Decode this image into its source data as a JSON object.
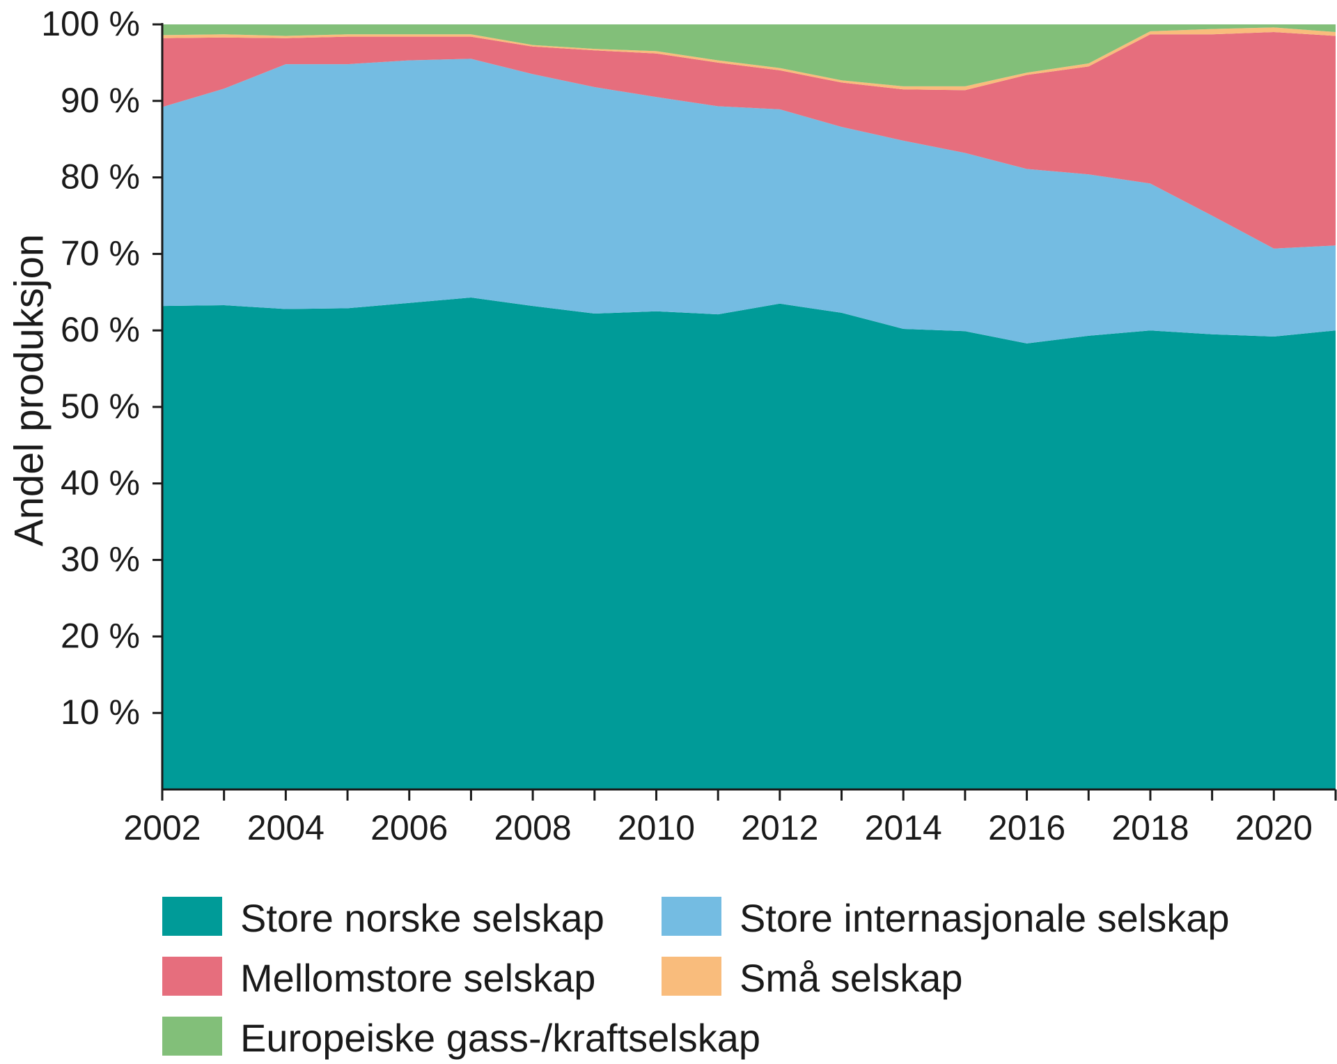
{
  "chart_data": {
    "type": "area",
    "stacked": true,
    "ylabel": "Andel produksjon",
    "xlabel": "",
    "x": [
      2002,
      2003,
      2004,
      2005,
      2006,
      2007,
      2008,
      2009,
      2010,
      2011,
      2012,
      2013,
      2014,
      2015,
      2016,
      2017,
      2018,
      2019,
      2020,
      2021
    ],
    "xlim": [
      2002,
      2021
    ],
    "xticks": [
      "2002",
      "2004",
      "2006",
      "2008",
      "2010",
      "2012",
      "2014",
      "2016",
      "2018",
      "2020"
    ],
    "ylim": [
      0,
      100
    ],
    "yticks": [
      "10 %",
      "20 %",
      "30 %",
      "40 %",
      "50 %",
      "60 %",
      "70 %",
      "80 %",
      "90 %",
      "100 %"
    ],
    "grid": false,
    "legend_position": "bottom",
    "series": [
      {
        "name": "Store norske selskap",
        "color": "#009b98",
        "values": [
          63.2,
          63.3,
          62.8,
          62.9,
          63.6,
          64.3,
          63.2,
          62.2,
          62.5,
          62.1,
          63.5,
          62.3,
          60.2,
          59.9,
          58.3,
          59.3,
          60.0,
          59.5,
          59.2,
          60.0
        ]
      },
      {
        "name": "Store internasjonale selskap",
        "color": "#74bce2",
        "values": [
          26.0,
          28.3,
          32.0,
          31.9,
          31.7,
          31.2,
          30.3,
          29.6,
          28.0,
          27.2,
          25.4,
          24.3,
          24.6,
          23.3,
          22.8,
          21.1,
          19.2,
          15.5,
          11.5,
          11.1
        ]
      },
      {
        "name": "Mellomstore selskap",
        "color": "#e66e7d",
        "values": [
          9.0,
          6.7,
          3.4,
          3.6,
          3.1,
          2.9,
          3.6,
          4.8,
          5.7,
          5.7,
          5.1,
          5.8,
          6.7,
          8.2,
          12.3,
          14.1,
          19.5,
          23.7,
          28.3,
          27.4
        ]
      },
      {
        "name": "Små selskap",
        "color": "#f9bc7c",
        "values": [
          0.4,
          0.4,
          0.3,
          0.3,
          0.3,
          0.3,
          0.2,
          0.2,
          0.3,
          0.3,
          0.3,
          0.3,
          0.4,
          0.5,
          0.3,
          0.4,
          0.4,
          0.7,
          0.6,
          0.5
        ]
      },
      {
        "name": "Europeiske gass-/kraftselskap",
        "color": "#82bf79",
        "values": [
          1.4,
          1.3,
          1.5,
          1.3,
          1.3,
          1.3,
          2.7,
          3.2,
          3.5,
          4.7,
          5.7,
          7.3,
          8.1,
          8.1,
          6.3,
          5.1,
          0.9,
          0.6,
          0.4,
          1.0
        ]
      }
    ]
  }
}
